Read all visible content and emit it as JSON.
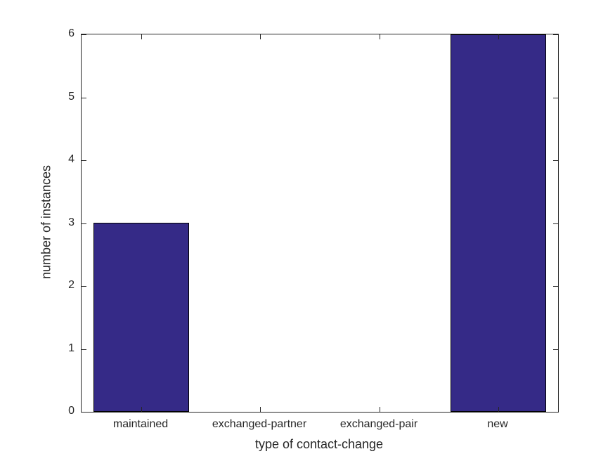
{
  "chart_data": {
    "type": "bar",
    "categories": [
      "maintained",
      "exchanged-partner",
      "exchanged-pair",
      "new"
    ],
    "values": [
      3,
      0,
      0,
      6
    ],
    "title": "",
    "xlabel": "type of contact-change",
    "ylabel": "number of instances",
    "ylim": [
      0,
      6
    ],
    "yticks": [
      0,
      1,
      2,
      3,
      4,
      5,
      6
    ],
    "bar_color": "#352A87",
    "bar_edge_color": "#000000",
    "axis_color": "#262626",
    "text_color": "#262626",
    "grid": false,
    "legend": "none",
    "bar_width_fraction": 0.8
  }
}
